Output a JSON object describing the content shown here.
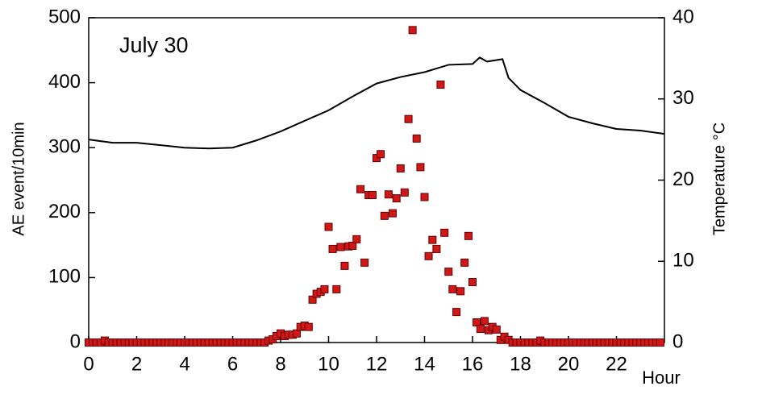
{
  "chart_data": {
    "type": "scatter",
    "title": "July 30",
    "xlabel": "Hour",
    "ylabel": "AE event/10min",
    "y2label": "Temperature °C",
    "xlim": [
      0,
      24
    ],
    "xticks": [
      0,
      2,
      4,
      6,
      8,
      10,
      12,
      14,
      16,
      18,
      20,
      22
    ],
    "ylim": [
      0,
      500
    ],
    "yticks": [
      0,
      100,
      200,
      300,
      400,
      500
    ],
    "y2lim": [
      0,
      40
    ],
    "y2ticks": [
      0,
      10,
      20,
      30,
      40
    ],
    "series": [
      {
        "type": "scatter",
        "color": "#d01818",
        "x": [
          0,
          0.17,
          0.33,
          0.5,
          0.67,
          0.83,
          1,
          1.17,
          1.33,
          1.5,
          1.67,
          1.83,
          2,
          2.17,
          2.33,
          2.5,
          2.67,
          2.83,
          3,
          3.17,
          3.33,
          3.5,
          3.67,
          3.83,
          4,
          4.17,
          4.33,
          4.5,
          4.67,
          4.83,
          5,
          5.17,
          5.33,
          5.5,
          5.67,
          5.83,
          6,
          6.17,
          6.33,
          6.5,
          6.67,
          6.83,
          7,
          7.17,
          7.33,
          7.5,
          7.67,
          7.83,
          8,
          8.17,
          8.33,
          8.5,
          8.67,
          8.83,
          9,
          9.17,
          9.33,
          9.5,
          9.67,
          9.83,
          10,
          10.17,
          10.33,
          10.5,
          10.67,
          10.83,
          11,
          11.17,
          11.33,
          11.5,
          11.67,
          11.83,
          12,
          12.17,
          12.33,
          12.5,
          12.67,
          12.83,
          13,
          13.17,
          13.33,
          13.5,
          13.67,
          13.83,
          14,
          14.17,
          14.33,
          14.5,
          14.67,
          14.83,
          15,
          15.17,
          15.33,
          15.5,
          15.67,
          15.83,
          16,
          16.17,
          16.33,
          16.5,
          16.67,
          16.83,
          17,
          17.17,
          17.33,
          17.5,
          17.67,
          17.83,
          18,
          18.17,
          18.33,
          18.5,
          18.67,
          18.83,
          19,
          19.17,
          19.33,
          19.5,
          19.67,
          19.83,
          20,
          20.17,
          20.33,
          20.5,
          20.67,
          20.83,
          21,
          21.17,
          21.33,
          21.5,
          21.67,
          21.83,
          22,
          22.17,
          22.33,
          22.5,
          22.67,
          22.83,
          23,
          23.17,
          23.33,
          23.5,
          23.67,
          23.83
        ],
        "values": [
          0,
          0,
          0,
          0,
          3,
          0,
          0,
          0,
          0,
          0,
          0,
          0,
          0,
          0,
          0,
          0,
          0,
          0,
          0,
          0,
          0,
          0,
          0,
          0,
          0,
          0,
          0,
          0,
          0,
          0,
          0,
          0,
          0,
          0,
          0,
          0,
          0,
          0,
          0,
          0,
          0,
          0,
          0,
          0,
          0,
          3,
          5,
          10,
          14,
          10,
          12,
          12,
          14,
          24,
          26,
          24,
          66,
          75,
          78,
          82,
          178,
          144,
          82,
          147,
          118,
          148,
          149,
          159,
          236,
          123,
          227,
          227,
          284,
          290,
          195,
          228,
          199,
          222,
          268,
          231,
          344,
          481,
          314,
          270,
          224,
          133,
          158,
          144,
          397,
          169,
          109,
          82,
          47,
          79,
          123,
          164,
          93,
          31,
          21,
          33,
          19,
          24,
          20,
          4,
          9,
          4,
          0,
          0,
          0,
          0,
          0,
          0,
          0,
          3,
          0,
          0,
          0,
          0,
          0,
          0,
          0,
          0,
          0,
          0,
          0,
          0,
          0,
          0,
          0,
          0,
          0,
          0,
          0,
          0,
          0,
          0,
          0,
          0,
          0,
          0,
          0,
          0,
          0,
          0
        ]
      },
      {
        "type": "line",
        "axis": "y2",
        "color": "#000000",
        "x": [
          0,
          1,
          2,
          3,
          4,
          5,
          6,
          7,
          8,
          9,
          10,
          11,
          12,
          13,
          14,
          15,
          16,
          16.3,
          16.6,
          17.25,
          17.5,
          18,
          19,
          20,
          21,
          22,
          23,
          24
        ],
        "values": [
          25.0,
          24.6,
          24.6,
          24.3,
          24.0,
          23.9,
          24.0,
          24.9,
          26.0,
          27.3,
          28.6,
          30.3,
          31.9,
          32.7,
          33.3,
          34.2,
          34.3,
          35.1,
          34.6,
          34.9,
          32.6,
          31.1,
          29.5,
          27.8,
          27.0,
          26.3,
          26.1,
          25.7
        ]
      }
    ]
  }
}
